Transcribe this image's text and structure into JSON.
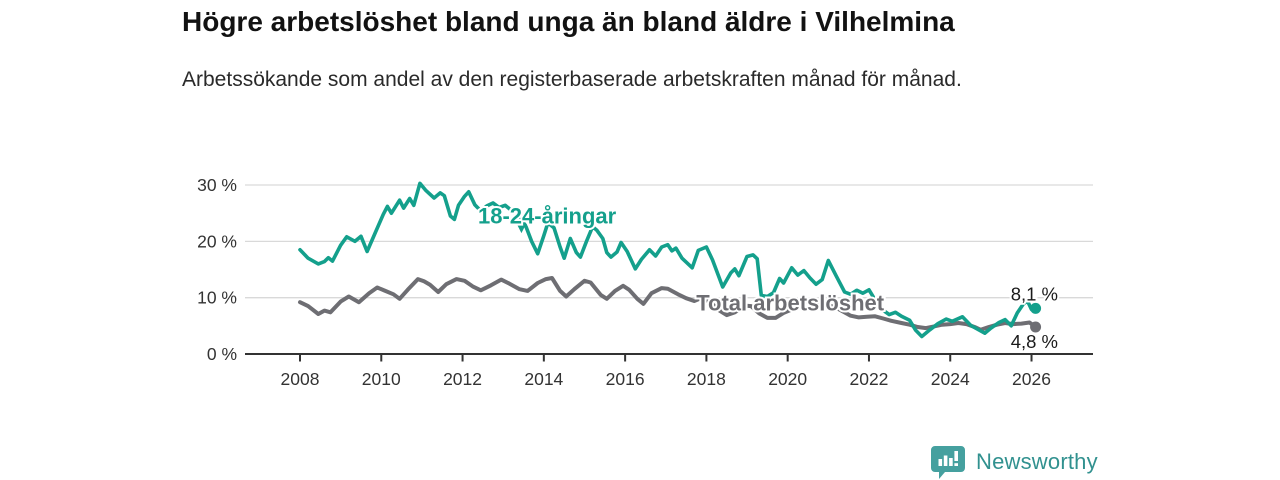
{
  "header": {
    "title": "Högre arbetslöshet bland unga än bland äldre i Vilhelmina",
    "subtitle": "Arbetssökande som andel av den registerbaserade arbetskraften månad för månad."
  },
  "chart_data": {
    "type": "line",
    "unit": "%",
    "grid": true,
    "x_axis": {
      "ticks": [
        2008,
        2010,
        2012,
        2014,
        2016,
        2018,
        2020,
        2022,
        2024,
        2026
      ],
      "range": [
        2007.6,
        2026.6
      ]
    },
    "y_axis": {
      "ticks": [
        0,
        10,
        20,
        30
      ],
      "tick_labels": [
        "0 %",
        "10 %",
        "20 %",
        "30 %"
      ],
      "range": [
        0,
        32
      ]
    },
    "colors": {
      "grid": "#d9d9d9",
      "axis": "#333333",
      "tick_text": "#333333",
      "annotation_text": "#1a1a1a"
    },
    "series": [
      {
        "name": "Total arbetslöshet",
        "color": "#6e6e73",
        "end_value": 4.8,
        "end_label": "4,8 %",
        "label_pos": [
          2017.75,
          7.7
        ],
        "points": [
          [
            2008.0,
            9.2
          ],
          [
            2008.2,
            8.5
          ],
          [
            2008.45,
            7.1
          ],
          [
            2008.6,
            7.7
          ],
          [
            2008.75,
            7.4
          ],
          [
            2009.0,
            9.3
          ],
          [
            2009.2,
            10.2
          ],
          [
            2009.45,
            9.2
          ],
          [
            2009.7,
            10.8
          ],
          [
            2009.9,
            11.8
          ],
          [
            2010.1,
            11.2
          ],
          [
            2010.3,
            10.6
          ],
          [
            2010.45,
            9.8
          ],
          [
            2010.65,
            11.4
          ],
          [
            2010.9,
            13.3
          ],
          [
            2011.05,
            12.9
          ],
          [
            2011.2,
            12.3
          ],
          [
            2011.4,
            11.0
          ],
          [
            2011.6,
            12.4
          ],
          [
            2011.85,
            13.3
          ],
          [
            2012.05,
            13.0
          ],
          [
            2012.25,
            12.0
          ],
          [
            2012.45,
            11.3
          ],
          [
            2012.7,
            12.2
          ],
          [
            2012.95,
            13.2
          ],
          [
            2013.15,
            12.5
          ],
          [
            2013.4,
            11.5
          ],
          [
            2013.6,
            11.2
          ],
          [
            2013.85,
            12.6
          ],
          [
            2014.05,
            13.3
          ],
          [
            2014.2,
            13.5
          ],
          [
            2014.4,
            11.2
          ],
          [
            2014.55,
            10.2
          ],
          [
            2014.75,
            11.5
          ],
          [
            2015.0,
            13.0
          ],
          [
            2015.15,
            12.7
          ],
          [
            2015.4,
            10.5
          ],
          [
            2015.55,
            9.8
          ],
          [
            2015.75,
            11.2
          ],
          [
            2015.95,
            12.1
          ],
          [
            2016.1,
            11.4
          ],
          [
            2016.3,
            9.8
          ],
          [
            2016.45,
            8.9
          ],
          [
            2016.65,
            10.8
          ],
          [
            2016.9,
            11.7
          ],
          [
            2017.05,
            11.6
          ],
          [
            2017.3,
            10.6
          ],
          [
            2017.5,
            9.9
          ],
          [
            2017.7,
            9.4
          ],
          [
            2017.9,
            10.0
          ],
          [
            2018.1,
            9.2
          ],
          [
            2018.3,
            7.8
          ],
          [
            2018.5,
            6.9
          ],
          [
            2018.7,
            7.4
          ],
          [
            2018.95,
            8.6
          ],
          [
            2019.1,
            8.5
          ],
          [
            2019.3,
            7.2
          ],
          [
            2019.5,
            6.4
          ],
          [
            2019.7,
            6.4
          ],
          [
            2019.9,
            7.3
          ],
          [
            2020.1,
            7.9
          ],
          [
            2020.35,
            9.0
          ],
          [
            2020.55,
            9.4
          ],
          [
            2020.75,
            9.0
          ],
          [
            2020.95,
            8.7
          ],
          [
            2021.15,
            8.4
          ],
          [
            2021.35,
            7.6
          ],
          [
            2021.55,
            6.8
          ],
          [
            2021.75,
            6.5
          ],
          [
            2021.95,
            6.6
          ],
          [
            2022.15,
            6.7
          ],
          [
            2022.35,
            6.3
          ],
          [
            2022.55,
            5.9
          ],
          [
            2022.8,
            5.5
          ],
          [
            2023.0,
            5.2
          ],
          [
            2023.2,
            4.8
          ],
          [
            2023.4,
            4.6
          ],
          [
            2023.6,
            4.9
          ],
          [
            2023.8,
            5.2
          ],
          [
            2024.0,
            5.3
          ],
          [
            2024.2,
            5.5
          ],
          [
            2024.4,
            5.3
          ],
          [
            2024.6,
            4.8
          ],
          [
            2024.75,
            4.3
          ],
          [
            2024.95,
            4.8
          ],
          [
            2025.15,
            5.2
          ],
          [
            2025.35,
            5.5
          ],
          [
            2025.55,
            5.3
          ],
          [
            2025.75,
            5.4
          ],
          [
            2025.95,
            5.6
          ],
          [
            2026.1,
            4.8
          ]
        ]
      },
      {
        "name": "18-24-åringar",
        "color": "#14a08c",
        "end_value": 8.1,
        "end_label": "8,1 %",
        "label_pos": [
          2012.38,
          23.2
        ],
        "pointer": [
          2013.45,
          21.5
        ],
        "points": [
          [
            2008.0,
            18.5
          ],
          [
            2008.2,
            17.0
          ],
          [
            2008.45,
            16.0
          ],
          [
            2008.6,
            16.4
          ],
          [
            2008.7,
            17.1
          ],
          [
            2008.8,
            16.5
          ],
          [
            2009.0,
            19.3
          ],
          [
            2009.15,
            20.8
          ],
          [
            2009.35,
            20.0
          ],
          [
            2009.5,
            20.9
          ],
          [
            2009.65,
            18.2
          ],
          [
            2009.85,
            21.5
          ],
          [
            2010.05,
            24.8
          ],
          [
            2010.15,
            26.2
          ],
          [
            2010.25,
            25.0
          ],
          [
            2010.45,
            27.3
          ],
          [
            2010.55,
            25.9
          ],
          [
            2010.7,
            27.6
          ],
          [
            2010.8,
            26.4
          ],
          [
            2010.95,
            30.3
          ],
          [
            2011.1,
            29.0
          ],
          [
            2011.3,
            27.7
          ],
          [
            2011.45,
            28.6
          ],
          [
            2011.55,
            28.1
          ],
          [
            2011.7,
            24.5
          ],
          [
            2011.8,
            23.9
          ],
          [
            2011.9,
            26.4
          ],
          [
            2012.05,
            28.0
          ],
          [
            2012.15,
            28.8
          ],
          [
            2012.3,
            26.5
          ],
          [
            2012.45,
            25.4
          ],
          [
            2012.6,
            26.3
          ],
          [
            2012.75,
            26.8
          ],
          [
            2012.9,
            26.0
          ],
          [
            2013.05,
            26.4
          ],
          [
            2013.25,
            25.2
          ],
          [
            2013.4,
            24.2
          ],
          [
            2013.55,
            22.8
          ],
          [
            2013.7,
            20.0
          ],
          [
            2013.85,
            17.8
          ],
          [
            2014.0,
            21.0
          ],
          [
            2014.1,
            23.3
          ],
          [
            2014.25,
            22.4
          ],
          [
            2014.4,
            19.0
          ],
          [
            2014.5,
            17.0
          ],
          [
            2014.65,
            20.5
          ],
          [
            2014.8,
            18.0
          ],
          [
            2014.9,
            17.2
          ],
          [
            2015.05,
            20.0
          ],
          [
            2015.2,
            22.6
          ],
          [
            2015.3,
            22.0
          ],
          [
            2015.45,
            20.5
          ],
          [
            2015.55,
            18.0
          ],
          [
            2015.65,
            17.2
          ],
          [
            2015.8,
            18.1
          ],
          [
            2015.9,
            19.8
          ],
          [
            2016.05,
            18.2
          ],
          [
            2016.25,
            15.1
          ],
          [
            2016.4,
            16.8
          ],
          [
            2016.6,
            18.5
          ],
          [
            2016.75,
            17.4
          ],
          [
            2016.9,
            19.0
          ],
          [
            2017.05,
            19.4
          ],
          [
            2017.15,
            18.3
          ],
          [
            2017.25,
            18.8
          ],
          [
            2017.4,
            17.0
          ],
          [
            2017.65,
            15.3
          ],
          [
            2017.8,
            18.4
          ],
          [
            2018.0,
            19.0
          ],
          [
            2018.15,
            16.7
          ],
          [
            2018.4,
            11.9
          ],
          [
            2018.6,
            14.4
          ],
          [
            2018.7,
            15.1
          ],
          [
            2018.8,
            13.9
          ],
          [
            2019.0,
            17.3
          ],
          [
            2019.15,
            17.6
          ],
          [
            2019.25,
            16.9
          ],
          [
            2019.35,
            10.4
          ],
          [
            2019.5,
            10.2
          ],
          [
            2019.65,
            10.9
          ],
          [
            2019.8,
            13.4
          ],
          [
            2019.9,
            12.6
          ],
          [
            2020.1,
            15.3
          ],
          [
            2020.25,
            14.0
          ],
          [
            2020.4,
            14.8
          ],
          [
            2020.55,
            13.5
          ],
          [
            2020.7,
            12.4
          ],
          [
            2020.85,
            13.2
          ],
          [
            2021.0,
            16.6
          ],
          [
            2021.2,
            13.8
          ],
          [
            2021.4,
            11.0
          ],
          [
            2021.55,
            10.6
          ],
          [
            2021.7,
            11.3
          ],
          [
            2021.85,
            10.8
          ],
          [
            2022.0,
            11.4
          ],
          [
            2022.15,
            9.6
          ],
          [
            2022.3,
            8.0
          ],
          [
            2022.5,
            7.0
          ],
          [
            2022.65,
            7.4
          ],
          [
            2022.8,
            6.7
          ],
          [
            2023.0,
            6.0
          ],
          [
            2023.15,
            4.2
          ],
          [
            2023.3,
            3.1
          ],
          [
            2023.5,
            4.3
          ],
          [
            2023.7,
            5.4
          ],
          [
            2023.9,
            6.2
          ],
          [
            2024.05,
            5.8
          ],
          [
            2024.3,
            6.6
          ],
          [
            2024.5,
            5.1
          ],
          [
            2024.7,
            4.3
          ],
          [
            2024.85,
            3.7
          ],
          [
            2025.0,
            4.6
          ],
          [
            2025.2,
            5.6
          ],
          [
            2025.35,
            6.1
          ],
          [
            2025.5,
            5.0
          ],
          [
            2025.65,
            7.3
          ],
          [
            2025.8,
            8.9
          ],
          [
            2025.9,
            9.4
          ],
          [
            2026.0,
            7.9
          ],
          [
            2026.1,
            8.1
          ]
        ]
      }
    ]
  },
  "footer": {
    "brand": "Newsworthy"
  }
}
